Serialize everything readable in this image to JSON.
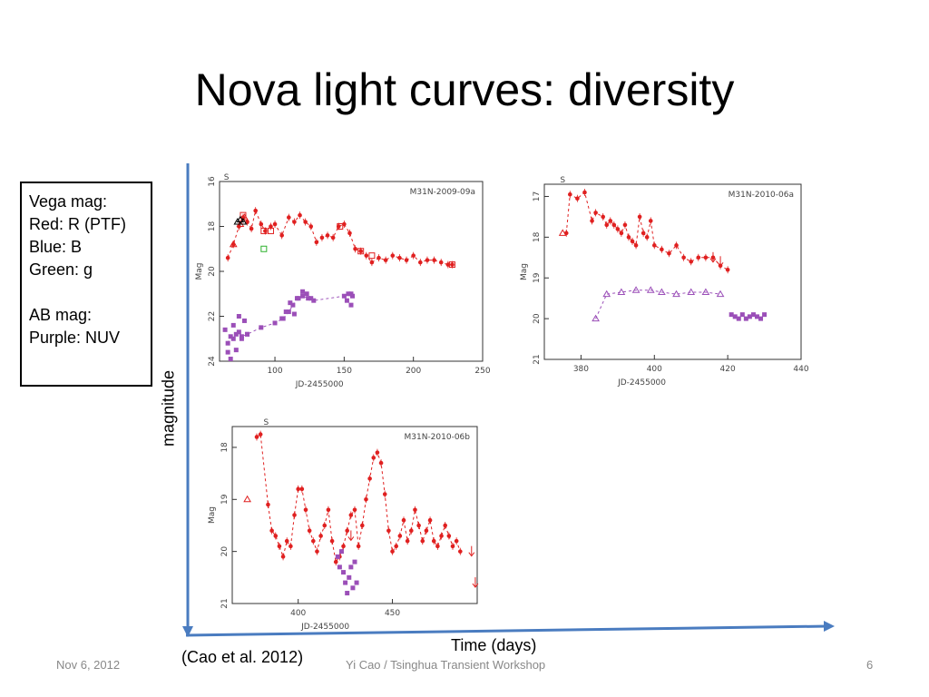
{
  "slide": {
    "title": "Nova light curves: diversity",
    "legend": {
      "line1": "Vega mag:",
      "line2": "Red: R (PTF)",
      "line3": "Blue: B",
      "line4": "Green: g",
      "line5": "AB mag:",
      "line6": "Purple: NUV"
    },
    "y_axis_label": "magnitude",
    "x_axis_label": "Time (days)",
    "citation": "(Cao et al. 2012)",
    "footer_left": "Nov 6, 2012",
    "footer_center": "Yi Cao / Tsinghua Transient Workshop",
    "footer_right": "6"
  },
  "colors": {
    "red": "#e02020",
    "purple": "#9b4fb8",
    "green": "#2bb02b",
    "black": "#000000",
    "arrow": "#4a7cc0"
  },
  "chart_data": [
    {
      "type": "scatter",
      "title": "M31N-2009-09a",
      "marker_label": "S",
      "marker_x": 65,
      "xlabel": "JD-2455000",
      "ylabel": "Mag",
      "xlim": [
        60,
        250
      ],
      "ylim": [
        24,
        16
      ],
      "xticks": [
        100,
        150,
        200,
        250
      ],
      "yticks": [
        16,
        18,
        20,
        22,
        24
      ],
      "series": [
        {
          "color": "red",
          "dashed": true,
          "marker": "dot",
          "x": [
            66,
            70,
            74,
            77,
            80,
            83,
            86,
            90,
            93,
            97,
            100,
            105,
            110,
            114,
            118,
            122,
            126,
            130,
            134,
            138,
            142,
            146,
            150,
            154,
            158,
            162,
            166,
            170,
            175,
            180,
            185,
            190,
            195,
            200,
            205,
            210,
            215,
            220,
            225,
            228
          ],
          "y": [
            19.4,
            18.8,
            18.0,
            17.6,
            17.8,
            18.1,
            17.3,
            17.9,
            18.2,
            18.0,
            17.9,
            18.4,
            17.6,
            17.8,
            17.5,
            17.8,
            18.0,
            18.7,
            18.5,
            18.4,
            18.5,
            18.0,
            17.9,
            18.3,
            19.0,
            19.1,
            19.3,
            19.6,
            19.4,
            19.5,
            19.3,
            19.4,
            19.5,
            19.3,
            19.6,
            19.5,
            19.5,
            19.6,
            19.7,
            19.7
          ]
        },
        {
          "color": "red",
          "dashed": false,
          "marker": "open-triangle",
          "x": [
            70,
            75,
            78
          ],
          "y": [
            18.8,
            17.9,
            17.6
          ]
        },
        {
          "color": "red",
          "dashed": false,
          "marker": "open-square",
          "x": [
            77,
            92,
            97,
            147,
            162,
            170,
            228
          ],
          "y": [
            17.5,
            18.2,
            18.2,
            18.0,
            19.1,
            19.3,
            19.7
          ]
        },
        {
          "color": "black",
          "dashed": false,
          "marker": "open-triangle",
          "x": [
            73,
            75,
            77
          ],
          "y": [
            17.8,
            17.7,
            17.8
          ]
        },
        {
          "color": "green",
          "dashed": false,
          "marker": "open-square",
          "x": [
            92
          ],
          "y": [
            19.0
          ]
        },
        {
          "color": "purple",
          "dashed": true,
          "marker": "square",
          "x": [
            66,
            68,
            70,
            72,
            74,
            76,
            80,
            90,
            100,
            106,
            110,
            113,
            116,
            120,
            124,
            128,
            150,
            153,
            155,
            156
          ],
          "y": [
            23.2,
            22.9,
            23.0,
            22.8,
            22.7,
            22.9,
            22.8,
            22.5,
            22.3,
            22.1,
            21.8,
            21.5,
            21.2,
            21.1,
            21.2,
            21.3,
            21.1,
            21.0,
            21.0,
            21.1
          ]
        },
        {
          "color": "purple",
          "dashed": false,
          "marker": "square",
          "x": [
            64,
            66,
            68,
            70,
            72,
            74,
            76,
            78,
            80,
            105,
            108,
            111,
            114,
            117,
            120,
            123,
            126,
            152,
            155
          ],
          "y": [
            22.6,
            23.6,
            23.9,
            22.4,
            23.5,
            22.0,
            23.0,
            22.2,
            22.8,
            22.1,
            21.8,
            21.4,
            21.9,
            21.2,
            20.9,
            21.0,
            21.2,
            21.3,
            21.5
          ]
        }
      ]
    },
    {
      "type": "scatter",
      "title": "M31N-2010-06a",
      "marker_label": "S",
      "marker_x": 375,
      "xlabel": "JD-2455000",
      "ylabel": "Mag",
      "xlim": [
        370,
        440
      ],
      "ylim": [
        21,
        16.7
      ],
      "xticks": [
        380,
        400,
        420,
        440
      ],
      "yticks": [
        17,
        18,
        19,
        20,
        21
      ],
      "series": [
        {
          "color": "red",
          "dashed": true,
          "marker": "dot",
          "x": [
            376,
            377,
            379,
            381,
            383,
            384,
            386,
            387,
            388,
            389,
            390,
            391,
            392,
            393,
            394,
            395,
            396,
            397,
            398,
            399,
            400,
            402,
            404,
            406,
            408,
            410,
            412,
            414,
            416,
            418,
            420
          ],
          "y": [
            17.9,
            16.95,
            17.05,
            16.9,
            17.6,
            17.4,
            17.5,
            17.7,
            17.6,
            17.7,
            17.8,
            17.9,
            17.7,
            18.0,
            18.1,
            18.2,
            17.5,
            17.9,
            18.0,
            17.6,
            18.2,
            18.3,
            18.4,
            18.2,
            18.5,
            18.6,
            18.5,
            18.5,
            18.5,
            18.7,
            18.8
          ]
        },
        {
          "color": "red",
          "dashed": false,
          "marker": "open-triangle",
          "x": [
            375
          ],
          "y": [
            17.9
          ]
        },
        {
          "color": "red",
          "dashed": false,
          "marker": "arrow-down",
          "x": [
            416,
            418
          ],
          "y": [
            18.5,
            18.6
          ]
        },
        {
          "color": "purple",
          "dashed": true,
          "marker": "open-triangle",
          "x": [
            384,
            387,
            391,
            395,
            399,
            402,
            406,
            410,
            414,
            418
          ],
          "y": [
            20.0,
            19.4,
            19.35,
            19.3,
            19.3,
            19.35,
            19.4,
            19.35,
            19.35,
            19.4
          ]
        },
        {
          "color": "purple",
          "dashed": false,
          "marker": "square",
          "x": [
            421,
            422,
            423,
            424,
            425,
            426,
            427,
            428,
            429,
            430
          ],
          "y": [
            19.9,
            19.95,
            20.0,
            19.9,
            20.0,
            19.95,
            19.9,
            19.95,
            20.0,
            19.9
          ]
        }
      ]
    },
    {
      "type": "scatter",
      "title": "M31N-2010-06b",
      "marker_label": "S",
      "marker_x": 383,
      "xlabel": "JD-2455000",
      "ylabel": "Mag",
      "xlim": [
        365,
        495
      ],
      "ylim": [
        21,
        17.6
      ],
      "xticks": [
        400,
        450
      ],
      "yticks": [
        18,
        19,
        20,
        21
      ],
      "series": [
        {
          "color": "red",
          "dashed": true,
          "marker": "dot",
          "x": [
            378,
            380,
            384,
            386,
            388,
            390,
            392,
            394,
            396,
            398,
            400,
            402,
            404,
            406,
            408,
            410,
            412,
            414,
            416,
            418,
            420,
            422,
            424,
            426,
            428,
            430,
            432,
            434,
            436,
            438,
            440,
            442,
            444,
            446,
            448,
            450,
            452,
            454,
            456,
            458,
            460,
            462,
            464,
            466,
            468,
            470,
            472,
            474,
            476,
            478,
            480,
            482,
            484,
            486
          ],
          "y": [
            17.8,
            17.75,
            19.1,
            19.6,
            19.7,
            19.9,
            20.1,
            19.8,
            19.9,
            19.3,
            18.8,
            18.8,
            19.2,
            19.6,
            19.8,
            20.0,
            19.7,
            19.5,
            19.2,
            19.8,
            20.2,
            20.1,
            19.9,
            19.6,
            19.3,
            19.2,
            19.9,
            19.5,
            19.0,
            18.6,
            18.2,
            18.1,
            18.3,
            18.9,
            19.6,
            20.0,
            19.9,
            19.7,
            19.4,
            19.8,
            19.6,
            19.2,
            19.5,
            19.8,
            19.6,
            19.4,
            19.8,
            19.9,
            19.7,
            19.5,
            19.7,
            19.9,
            19.8,
            20.0
          ]
        },
        {
          "color": "red",
          "dashed": false,
          "marker": "open-triangle",
          "x": [
            373
          ],
          "y": [
            19.0
          ]
        },
        {
          "color": "red",
          "dashed": false,
          "marker": "arrow-down",
          "x": [
            428,
            492,
            494
          ],
          "y": [
            19.7,
            20.0,
            20.6
          ]
        },
        {
          "color": "purple",
          "dashed": false,
          "marker": "square",
          "x": [
            421,
            422,
            423,
            424,
            425,
            426,
            427,
            428,
            429,
            430,
            431
          ],
          "y": [
            20.1,
            20.3,
            20.0,
            20.4,
            20.6,
            20.8,
            20.5,
            20.3,
            20.7,
            20.2,
            20.6
          ]
        }
      ]
    }
  ]
}
